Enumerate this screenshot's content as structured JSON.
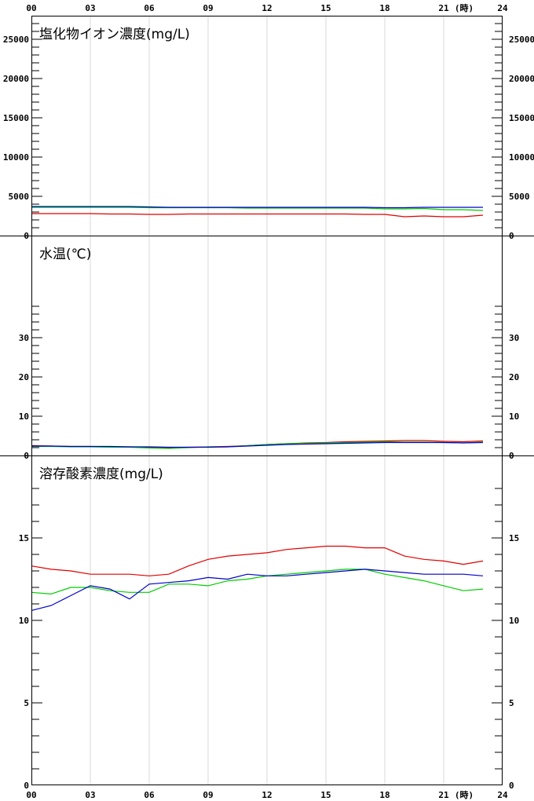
{
  "chart_data": {
    "type": "line",
    "x_tick_labels": [
      "00",
      "03",
      "06",
      "09",
      "12",
      "15",
      "18",
      "21",
      "24"
    ],
    "x_unit": "(時)",
    "x_range": [
      0,
      24
    ],
    "hours": [
      0,
      1,
      2,
      3,
      4,
      5,
      6,
      7,
      8,
      9,
      10,
      11,
      12,
      13,
      14,
      15,
      16,
      17,
      18,
      19,
      20,
      21,
      22,
      23
    ],
    "series_colors": [
      "#e00000",
      "#00cc00",
      "#0000cc"
    ],
    "panels": [
      {
        "title": "塩化物イオン濃度(mg/L)",
        "ylim": [
          0,
          28000
        ],
        "yticks": [
          0,
          5000,
          10000,
          15000,
          20000,
          25000
        ],
        "ytick_labels": [
          "0",
          "5000",
          "10000",
          "15000",
          "20000",
          "25000"
        ],
        "minor_step": 1000,
        "series": [
          {
            "values": [
              2800,
              2800,
              2800,
              2800,
              2750,
              2750,
              2700,
              2700,
              2750,
              2750,
              2750,
              2750,
              2750,
              2750,
              2750,
              2750,
              2750,
              2700,
              2700,
              2400,
              2500,
              2400,
              2400,
              2600
            ]
          },
          {
            "values": [
              3600,
              3600,
              3600,
              3600,
              3600,
              3600,
              3550,
              3550,
              3550,
              3550,
              3550,
              3500,
              3500,
              3500,
              3500,
              3500,
              3500,
              3500,
              3400,
              3400,
              3450,
              3300,
              3300,
              3200
            ]
          },
          {
            "values": [
              3700,
              3700,
              3700,
              3700,
              3700,
              3700,
              3650,
              3600,
              3600,
              3600,
              3600,
              3600,
              3600,
              3600,
              3600,
              3600,
              3600,
              3600,
              3550,
              3550,
              3600,
              3600,
              3600,
              3600
            ]
          }
        ]
      },
      {
        "title": "水温(℃)",
        "ylim": [
          0,
          56
        ],
        "yticks": [
          0,
          10,
          20,
          30
        ],
        "ytick_labels": [
          "0",
          "10",
          "20",
          "30"
        ],
        "minor_step": 2,
        "minor_max": 38,
        "series": [
          {
            "values": [
              2.5,
              2.4,
              2.3,
              2.3,
              2.2,
              2.2,
              2.1,
              2.0,
              2.1,
              2.2,
              2.3,
              2.5,
              2.8,
              3.0,
              3.2,
              3.3,
              3.5,
              3.6,
              3.7,
              3.8,
              3.8,
              3.6,
              3.5,
              3.7
            ]
          },
          {
            "values": [
              2.3,
              2.3,
              2.2,
              2.2,
              2.1,
              2.1,
              1.9,
              1.8,
              2.0,
              2.2,
              2.2,
              2.5,
              2.8,
              3.0,
              3.1,
              3.2,
              3.3,
              3.4,
              3.5,
              3.4,
              3.4,
              3.3,
              3.2,
              3.4
            ]
          },
          {
            "values": [
              2.4,
              2.4,
              2.3,
              2.3,
              2.3,
              2.2,
              2.2,
              2.1,
              2.1,
              2.1,
              2.2,
              2.4,
              2.6,
              2.8,
              2.9,
              3.0,
              3.1,
              3.2,
              3.3,
              3.3,
              3.3,
              3.3,
              3.2,
              3.3
            ]
          }
        ]
      },
      {
        "title": "溶存酸素濃度(mg/L)",
        "ylim": [
          0,
          20
        ],
        "yticks": [
          0,
          5,
          10,
          15
        ],
        "ytick_labels": [
          "0",
          "5",
          "10",
          "15"
        ],
        "minor_step": 1,
        "minor_max": 18,
        "series": [
          {
            "values": [
              13.3,
              13.1,
              13.0,
              12.8,
              12.8,
              12.8,
              12.7,
              12.8,
              13.3,
              13.7,
              13.9,
              14.0,
              14.1,
              14.3,
              14.4,
              14.5,
              14.5,
              14.4,
              14.4,
              13.9,
              13.7,
              13.6,
              13.4,
              13.6
            ]
          },
          {
            "values": [
              11.7,
              11.6,
              12.0,
              12.0,
              11.8,
              11.7,
              11.7,
              12.2,
              12.2,
              12.1,
              12.4,
              12.5,
              12.7,
              12.8,
              12.9,
              13.0,
              13.1,
              13.1,
              12.8,
              12.6,
              12.4,
              12.1,
              11.8,
              11.9
            ]
          },
          {
            "values": [
              10.6,
              10.9,
              11.5,
              12.1,
              11.9,
              11.3,
              12.2,
              12.3,
              12.4,
              12.6,
              12.5,
              12.8,
              12.7,
              12.7,
              12.8,
              12.9,
              13.0,
              13.1,
              13.0,
              12.9,
              12.8,
              12.8,
              12.8,
              12.7
            ]
          }
        ]
      }
    ]
  }
}
